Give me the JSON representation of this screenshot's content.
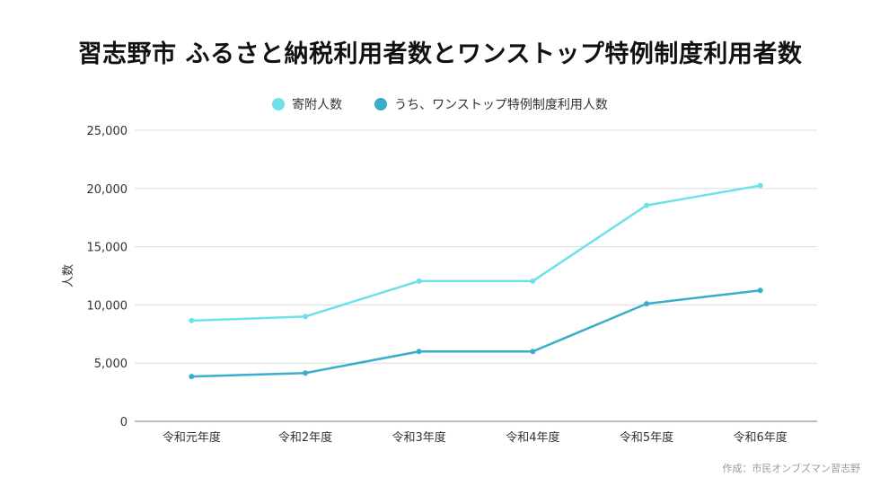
{
  "chart_data": {
    "type": "line",
    "title": "習志野市 ふるさと納税利用者数とワンストップ特例制度利用者数",
    "ylabel": "人数",
    "xlabel": "",
    "categories": [
      "令和元年度",
      "令和2年度",
      "令和3年度",
      "令和4年度",
      "令和5年度",
      "令和6年度"
    ],
    "ylim": [
      0,
      25000
    ],
    "yticks": [
      0,
      5000,
      10000,
      15000,
      20000,
      25000
    ],
    "ytick_labels": [
      "0",
      "5,000",
      "10,000",
      "15,000",
      "20,000",
      "25,000"
    ],
    "grid": true,
    "legend_position": "top-center",
    "series": [
      {
        "name": "寄附人数",
        "color": "#6ee0e8",
        "values": [
          8650,
          9000,
          12050,
          12050,
          18550,
          20250
        ]
      },
      {
        "name": "うち、ワンストップ特例制度利用人数",
        "color": "#39aecb",
        "values": [
          3850,
          4150,
          6000,
          6000,
          10100,
          11250
        ]
      }
    ]
  },
  "footer": {
    "credit": "作成：市民オンブズマン習志野"
  }
}
